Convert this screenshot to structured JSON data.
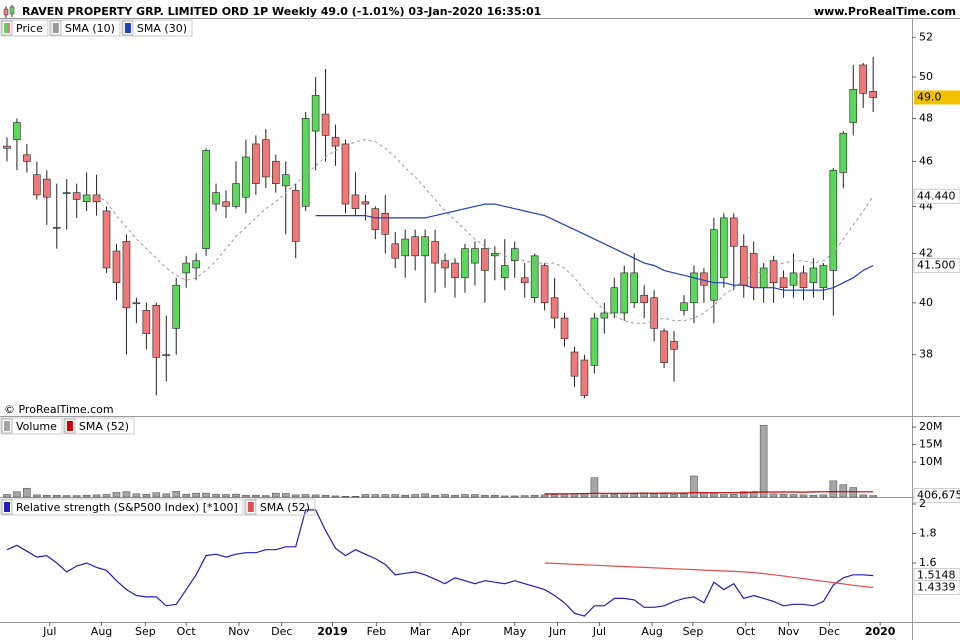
{
  "chart_data": [
    {
      "type": "candlestick",
      "title": "RAVEN PROPERTY GRP. LIMITED ORD 1P Weekly 49.0 (-1.01%) 03-Jan-2020 16:35:01",
      "source": "www.ProRealTime.com",
      "watermark": "© ProRealTime.com",
      "xlim": [
        -0.7,
        90.9
      ],
      "ylim": [
        35.8,
        52.9
      ],
      "log": true,
      "yticks": [
        38,
        40,
        42,
        44,
        46,
        48,
        50,
        52
      ],
      "up_color": "#5cd65c",
      "down_color": "#f07878",
      "series": [
        {
          "name": "Price",
          "last_label": "49.0",
          "label_bg": "#f2c200",
          "open": [
            46.7,
            47.0,
            46.3,
            45.4,
            45.2,
            43.1,
            44.6,
            44.6,
            44.2,
            44.5,
            43.8,
            42.1,
            42.5,
            40.0,
            39.7,
            39.9,
            38.0,
            39.0,
            41.2,
            41.4,
            42.2,
            44.1,
            44.2,
            44.0,
            44.4,
            46.8,
            47.0,
            46.0,
            44.9,
            44.7,
            44.0,
            47.4,
            48.2,
            47.1,
            46.8,
            44.5,
            44.2,
            43.9,
            43.7,
            42.4,
            41.9,
            42.7,
            41.9,
            42.5,
            41.7,
            41.6,
            41.0,
            41.6,
            42.2,
            41.9,
            41.0,
            41.7,
            41.0,
            40.2,
            41.5,
            40.2,
            39.4,
            38.1,
            37.8,
            37.6,
            39.4,
            39.6,
            39.6,
            40.0,
            40.3,
            40.2,
            38.9,
            38.5,
            39.7,
            40.0,
            41.2,
            40.1,
            41.0,
            43.5,
            42.3,
            42.0,
            40.6,
            41.7,
            41.0,
            40.7,
            41.2,
            40.8,
            40.6,
            41.3,
            45.5,
            47.8,
            50.6,
            49.3
          ],
          "high": [
            47.1,
            48.0,
            46.8,
            46.0,
            45.6,
            45.0,
            45.2,
            45.0,
            45.5,
            45.4,
            44.0,
            42.4,
            42.8,
            40.2,
            40.0,
            40.0,
            39.5,
            41.0,
            41.9,
            42.0,
            46.6,
            45.0,
            44.7,
            46.0,
            47.0,
            47.2,
            47.5,
            46.3,
            46.0,
            45.0,
            48.3,
            50.0,
            50.4,
            47.7,
            47.0,
            45.5,
            44.5,
            44.0,
            44.5,
            42.9,
            43.0,
            43.0,
            43.0,
            43.0,
            42.0,
            41.8,
            42.4,
            42.5,
            42.6,
            42.3,
            42.6,
            42.5,
            41.6,
            42.0,
            41.6,
            41.0,
            39.6,
            38.3,
            38.0,
            39.6,
            40.0,
            41.0,
            41.5,
            42.0,
            40.7,
            40.5,
            39.0,
            38.9,
            40.3,
            41.5,
            41.4,
            43.5,
            43.7,
            43.7,
            42.8,
            42.5,
            41.6,
            41.9,
            41.3,
            42.0,
            41.5,
            41.8,
            41.6,
            45.7,
            47.4,
            50.6,
            50.7,
            51.0
          ],
          "low": [
            46.0,
            45.6,
            45.5,
            44.3,
            43.2,
            42.2,
            43.0,
            43.5,
            43.8,
            43.6,
            41.2,
            40.1,
            38.0,
            39.2,
            38.2,
            36.5,
            37.0,
            38.0,
            40.6,
            40.9,
            41.9,
            43.8,
            43.5,
            43.9,
            43.7,
            44.5,
            44.8,
            44.6,
            42.8,
            41.8,
            43.8,
            45.6,
            46.0,
            45.8,
            43.7,
            43.6,
            43.4,
            42.6,
            42.0,
            41.4,
            41.0,
            41.3,
            40.0,
            40.4,
            40.6,
            40.2,
            40.4,
            40.7,
            40.0,
            40.9,
            40.5,
            41.0,
            40.2,
            40.0,
            39.7,
            39.0,
            38.3,
            36.8,
            36.4,
            37.3,
            38.8,
            39.4,
            39.3,
            39.8,
            39.4,
            38.5,
            37.5,
            37.0,
            39.5,
            39.2,
            40.0,
            39.2,
            40.6,
            40.5,
            40.2,
            40.1,
            40.0,
            40.0,
            40.2,
            40.2,
            40.1,
            40.2,
            40.1,
            39.5,
            44.8,
            47.2,
            48.5,
            48.3
          ],
          "close": [
            46.6,
            47.8,
            46.0,
            44.5,
            44.4,
            43.1,
            44.6,
            44.3,
            44.5,
            44.2,
            41.4,
            40.8,
            39.8,
            40.0,
            38.8,
            37.9,
            38.0,
            40.7,
            41.6,
            41.7,
            46.5,
            44.6,
            44.0,
            45.0,
            46.2,
            45.0,
            45.3,
            45.0,
            45.4,
            42.5,
            48.0,
            49.1,
            47.2,
            46.7,
            44.1,
            43.9,
            44.1,
            43.0,
            42.8,
            41.8,
            42.6,
            41.9,
            42.7,
            41.6,
            41.4,
            41.0,
            42.2,
            42.2,
            41.3,
            42.0,
            41.5,
            42.2,
            40.8,
            41.9,
            40.0,
            39.4,
            38.6,
            37.2,
            36.5,
            39.4,
            39.6,
            40.6,
            41.2,
            41.2,
            40.0,
            39.0,
            37.7,
            38.2,
            40.0,
            41.2,
            40.7,
            43.0,
            43.5,
            42.3,
            40.7,
            40.6,
            41.4,
            40.8,
            40.6,
            41.2,
            40.6,
            41.4,
            41.5,
            45.6,
            47.3,
            49.4,
            49.2,
            49.0
          ]
        },
        {
          "name": "SMA (10)",
          "color": "#999999",
          "dashed": true,
          "last_label": "44.440",
          "label_bg": "#ffffff",
          "values": [
            null,
            null,
            null,
            null,
            null,
            null,
            null,
            null,
            null,
            44.5,
            44.2,
            43.6,
            43.1,
            42.6,
            42.2,
            41.8,
            41.4,
            41.1,
            40.9,
            41.0,
            41.3,
            41.7,
            42.2,
            42.7,
            43.1,
            43.5,
            43.9,
            44.2,
            44.6,
            45.0,
            45.4,
            45.8,
            46.2,
            46.5,
            46.7,
            46.9,
            47.0,
            46.9,
            46.6,
            46.2,
            45.7,
            45.3,
            44.8,
            44.3,
            43.8,
            43.4,
            43.0,
            42.6,
            42.3,
            42.1,
            41.9,
            41.8,
            41.7,
            41.6,
            41.6,
            41.6,
            41.4,
            41.0,
            40.5,
            40.1,
            39.7,
            39.5,
            39.3,
            39.2,
            39.2,
            39.3,
            39.4,
            39.3,
            39.3,
            39.4,
            39.6,
            39.9,
            40.3,
            40.6,
            40.9,
            41.1,
            41.3,
            41.5,
            41.6,
            41.7,
            41.7,
            41.6,
            41.7,
            42.0,
            42.6,
            43.2,
            43.8,
            44.44
          ]
        },
        {
          "name": "SMA (30)",
          "color": "#1f3fbf",
          "last_label": "41.500",
          "label_bg": "#ffffff",
          "values": [
            null,
            null,
            null,
            null,
            null,
            null,
            null,
            null,
            null,
            null,
            null,
            null,
            null,
            null,
            null,
            null,
            null,
            null,
            null,
            null,
            null,
            null,
            null,
            null,
            null,
            null,
            null,
            null,
            null,
            null,
            null,
            43.6,
            43.6,
            43.6,
            43.6,
            43.6,
            43.6,
            43.5,
            43.5,
            43.5,
            43.5,
            43.5,
            43.5,
            43.6,
            43.7,
            43.8,
            43.9,
            44.0,
            44.1,
            44.1,
            44.0,
            43.9,
            43.8,
            43.7,
            43.6,
            43.4,
            43.2,
            43.0,
            42.8,
            42.6,
            42.4,
            42.2,
            42.0,
            41.8,
            41.6,
            41.5,
            41.3,
            41.2,
            41.1,
            41.0,
            40.9,
            40.8,
            40.8,
            40.7,
            40.7,
            40.6,
            40.6,
            40.6,
            40.5,
            40.5,
            40.5,
            40.5,
            40.5,
            40.6,
            40.8,
            41.0,
            41.3,
            41.5
          ]
        }
      ]
    },
    {
      "type": "bar",
      "xlim": [
        -0.7,
        90.9
      ],
      "ylim": [
        0,
        22600000
      ],
      "yticks": [
        {
          "value": 10000000,
          "label": "10M"
        },
        {
          "value": 15000000,
          "label": "15M"
        },
        {
          "value": 20000000,
          "label": "20M"
        }
      ],
      "series": [
        {
          "name": "Volume",
          "color": "#a6a6a6",
          "last_label": "406,675",
          "label_bg": "#ffffff",
          "values": [
            700000,
            1500000,
            2500000,
            600000,
            500000,
            500000,
            400000,
            400000,
            500000,
            600000,
            700000,
            1300000,
            1500000,
            900000,
            800000,
            1200000,
            900000,
            1600000,
            800000,
            1100000,
            1100000,
            800000,
            700000,
            800000,
            500000,
            500000,
            400000,
            1100000,
            1000000,
            600000,
            700000,
            600000,
            500000,
            300000,
            200000,
            200000,
            700000,
            700000,
            700000,
            700000,
            500000,
            700000,
            900000,
            500000,
            700000,
            500000,
            700000,
            700000,
            500000,
            500000,
            300000,
            300000,
            400000,
            500000,
            600000,
            700000,
            800000,
            900000,
            1000000,
            5500000,
            600000,
            800000,
            1000000,
            900000,
            1200000,
            900000,
            1000000,
            800000,
            900000,
            6000000,
            1200000,
            900000,
            700000,
            800000,
            1500000,
            1300000,
            20500000,
            900000,
            800000,
            700000,
            600000,
            500000,
            600000,
            4600000,
            3500000,
            2700000,
            600000,
            406675
          ]
        },
        {
          "name": "SMA (52)",
          "color": "#cc0000",
          "type": "line",
          "values": [
            null,
            null,
            null,
            null,
            null,
            null,
            null,
            null,
            null,
            null,
            null,
            null,
            null,
            null,
            null,
            null,
            null,
            null,
            null,
            null,
            null,
            null,
            null,
            null,
            null,
            null,
            null,
            null,
            null,
            null,
            null,
            null,
            null,
            null,
            null,
            null,
            null,
            null,
            null,
            null,
            null,
            null,
            null,
            null,
            null,
            null,
            null,
            null,
            null,
            null,
            null,
            null,
            null,
            null,
            900000,
            900000,
            920000,
            940000,
            960000,
            1050000,
            1050000,
            1060000,
            1070000,
            1080000,
            1090000,
            1100000,
            1110000,
            1110000,
            1120000,
            1230000,
            1230000,
            1230000,
            1220000,
            1230000,
            1240000,
            1450000,
            1440000,
            1440000,
            1430000,
            1420000,
            1410000,
            1450000,
            1500000,
            1540000,
            1530000,
            1520000,
            1500000,
            1490000
          ]
        }
      ]
    },
    {
      "type": "line",
      "xlim": [
        -0.7,
        90.9
      ],
      "ylim": [
        1.2,
        2.034
      ],
      "yticks": [
        1.6,
        1.8,
        2
      ],
      "xticks": [
        {
          "value": 4.3,
          "label": "Jul"
        },
        {
          "value": 9.5,
          "label": "Aug"
        },
        {
          "value": 13.9,
          "label": "Sep"
        },
        {
          "value": 18,
          "label": "Oct"
        },
        {
          "value": 23.3,
          "label": "Nov"
        },
        {
          "value": 27.6,
          "label": "Dec"
        },
        {
          "value": 32.7,
          "label": "2019"
        },
        {
          "value": 37.1,
          "label": "Feb"
        },
        {
          "value": 41.5,
          "label": "Mar"
        },
        {
          "value": 45.6,
          "label": "Apr"
        },
        {
          "value": 51,
          "label": "May"
        },
        {
          "value": 55.3,
          "label": "Jun"
        },
        {
          "value": 59.5,
          "label": "Jul"
        },
        {
          "value": 64.8,
          "label": "Aug"
        },
        {
          "value": 68.9,
          "label": "Sep"
        },
        {
          "value": 74.2,
          "label": "Oct"
        },
        {
          "value": 78.5,
          "label": "Nov"
        },
        {
          "value": 82.6,
          "label": "Dec"
        },
        {
          "value": 87.7,
          "label": "2020"
        }
      ],
      "series": [
        {
          "name": "Relative strength (S&P500 Index) [*100]",
          "color": "#1f1fbf",
          "values": [
            1.69,
            1.72,
            1.68,
            1.64,
            1.65,
            1.6,
            1.54,
            1.58,
            1.6,
            1.57,
            1.55,
            1.48,
            1.42,
            1.38,
            1.37,
            1.37,
            1.31,
            1.32,
            1.42,
            1.52,
            1.65,
            1.66,
            1.64,
            1.66,
            1.67,
            1.67,
            1.69,
            1.69,
            1.71,
            1.71,
            1.96,
            1.96,
            1.82,
            1.7,
            1.65,
            1.69,
            1.66,
            1.63,
            1.59,
            1.52,
            1.53,
            1.54,
            1.52,
            1.49,
            1.46,
            1.5,
            1.48,
            1.46,
            1.48,
            1.47,
            1.46,
            1.48,
            1.46,
            1.44,
            1.42,
            1.38,
            1.33,
            1.26,
            1.24,
            1.31,
            1.31,
            1.36,
            1.36,
            1.35,
            1.3,
            1.3,
            1.31,
            1.34,
            1.36,
            1.37,
            1.33,
            1.47,
            1.42,
            1.46,
            1.36,
            1.38,
            1.36,
            1.34,
            1.31,
            1.32,
            1.32,
            1.31,
            1.34,
            1.45,
            1.5,
            1.52,
            1.52,
            1.5148
          ]
        },
        {
          "name": "SMA (52)",
          "color": "#e05050",
          "values": [
            null,
            null,
            null,
            null,
            null,
            null,
            null,
            null,
            null,
            null,
            null,
            null,
            null,
            null,
            null,
            null,
            null,
            null,
            null,
            null,
            null,
            null,
            null,
            null,
            null,
            null,
            null,
            null,
            null,
            null,
            null,
            null,
            null,
            null,
            null,
            null,
            null,
            null,
            null,
            null,
            null,
            null,
            null,
            null,
            null,
            null,
            null,
            null,
            null,
            null,
            null,
            null,
            null,
            null,
            1.6,
            1.597,
            1.594,
            1.591,
            1.588,
            1.585,
            1.582,
            1.579,
            1.576,
            1.573,
            1.57,
            1.567,
            1.564,
            1.561,
            1.558,
            1.555,
            1.552,
            1.549,
            1.546,
            1.543,
            1.54,
            1.535,
            1.528,
            1.52,
            1.512,
            1.503,
            1.494,
            1.485,
            1.476,
            1.467,
            1.458,
            1.449,
            1.441,
            1.4339
          ]
        }
      ]
    }
  ]
}
